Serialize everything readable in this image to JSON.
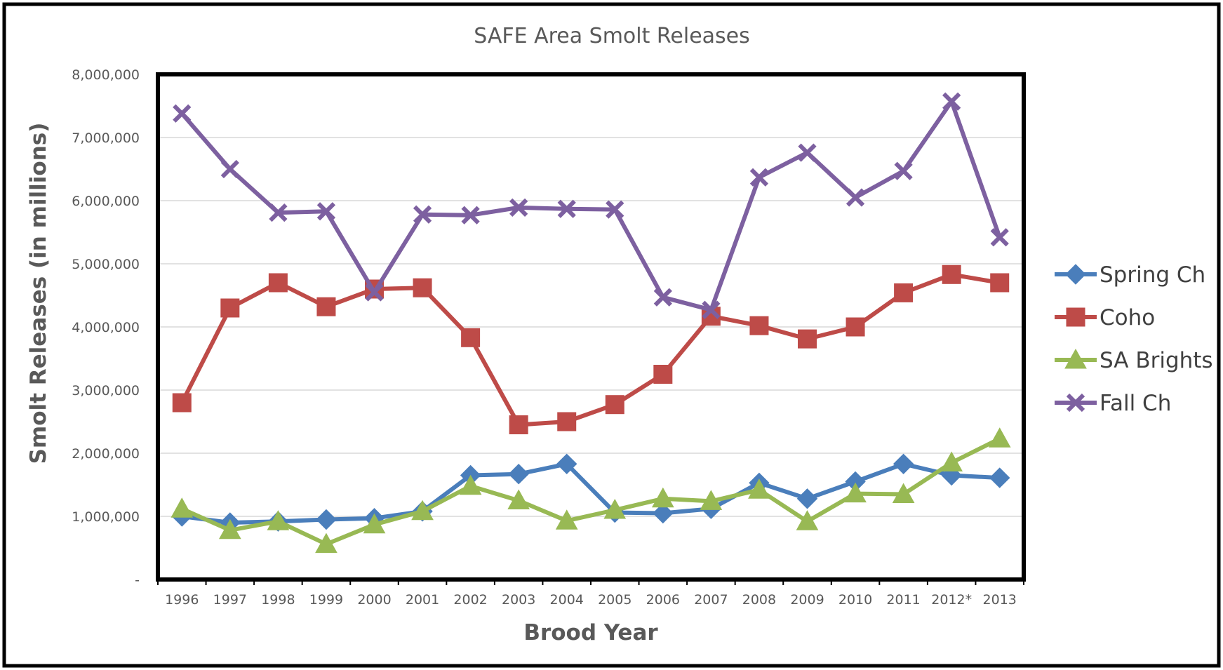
{
  "chart_data": {
    "type": "line",
    "title": "SAFE Area Smolt Releases",
    "xlabel": "Brood Year",
    "ylabel": "Smolt Releases (in millions)",
    "ylim": [
      0,
      8000000
    ],
    "y_ticks": [
      0,
      1000000,
      2000000,
      3000000,
      4000000,
      5000000,
      6000000,
      7000000,
      8000000
    ],
    "y_tick_labels": [
      "-",
      "1,000,000",
      "2,000,000",
      "3,000,000",
      "4,000,000",
      "5,000,000",
      "6,000,000",
      "7,000,000",
      "8,000,000"
    ],
    "grid": "horizontal",
    "legend_position": "right",
    "categories": [
      "1996",
      "1997",
      "1998",
      "1999",
      "2000",
      "2001",
      "2002",
      "2003",
      "2004",
      "2005",
      "2006",
      "2007",
      "2008",
      "2009",
      "2010",
      "2011",
      "2012*",
      "2013"
    ],
    "series": [
      {
        "name": "Spring Ch",
        "color": "#4A7EBB",
        "marker": "diamond",
        "values": [
          1000000,
          900000,
          920000,
          950000,
          970000,
          1080000,
          1650000,
          1670000,
          1830000,
          1060000,
          1050000,
          1120000,
          1530000,
          1280000,
          1550000,
          1830000,
          1650000,
          1610000
        ]
      },
      {
        "name": "Coho",
        "color": "#BE4B48",
        "marker": "square",
        "values": [
          2800000,
          4300000,
          4700000,
          4320000,
          4600000,
          4620000,
          3830000,
          2450000,
          2500000,
          2770000,
          3250000,
          4170000,
          4020000,
          3810000,
          4000000,
          4540000,
          4830000,
          4700000
        ]
      },
      {
        "name": "SA Brights",
        "color": "#98B954",
        "marker": "triangle",
        "values": [
          1120000,
          780000,
          920000,
          560000,
          870000,
          1080000,
          1480000,
          1250000,
          930000,
          1100000,
          1280000,
          1240000,
          1420000,
          920000,
          1360000,
          1350000,
          1850000,
          2230000
        ]
      },
      {
        "name": "Fall Ch",
        "color": "#7D60A0",
        "marker": "x",
        "values": [
          7380000,
          6500000,
          5810000,
          5830000,
          4550000,
          5780000,
          5770000,
          5890000,
          5870000,
          5860000,
          4470000,
          4270000,
          6370000,
          6760000,
          6050000,
          6470000,
          7570000,
          5420000
        ]
      }
    ]
  }
}
